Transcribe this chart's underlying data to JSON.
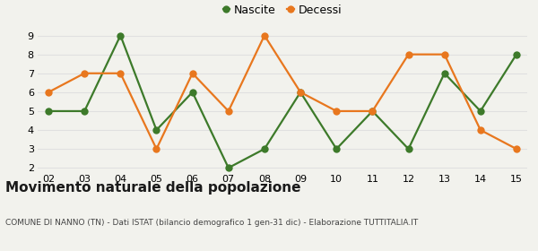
{
  "years": [
    "02",
    "03",
    "04",
    "05",
    "06",
    "07",
    "08",
    "09",
    "10",
    "11",
    "12",
    "13",
    "14",
    "15"
  ],
  "nascite": [
    5,
    5,
    9,
    4,
    6,
    2,
    3,
    6,
    3,
    5,
    3,
    7,
    5,
    8
  ],
  "decessi": [
    6,
    7,
    7,
    3,
    7,
    5,
    9,
    6,
    5,
    5,
    8,
    8,
    4,
    3
  ],
  "nascite_color": "#3d7a2a",
  "decessi_color": "#e8771e",
  "ylim_min": 2,
  "ylim_max": 9,
  "yticks": [
    2,
    3,
    4,
    5,
    6,
    7,
    8,
    9
  ],
  "title": "Movimento naturale della popolazione",
  "subtitle": "COMUNE DI NANNO (TN) - Dati ISTAT (bilancio demografico 1 gen-31 dic) - Elaborazione TUTTITALIA.IT",
  "legend_nascite": "Nascite",
  "legend_decessi": "Decessi",
  "background_color": "#f2f2ed",
  "grid_color": "#e0e0e0",
  "marker_size": 6,
  "line_width": 1.6,
  "title_fontsize": 11,
  "subtitle_fontsize": 6.5,
  "tick_fontsize": 8,
  "legend_fontsize": 9
}
